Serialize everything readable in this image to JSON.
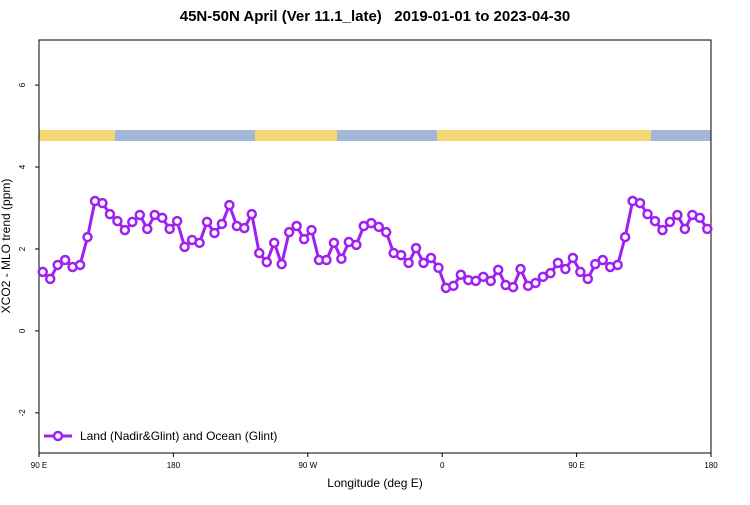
{
  "chart_data": {
    "type": "line",
    "title": "45N-50N April (Ver 11.1_late)   2019-01-01 to 2023-04-30",
    "xlabel": "Longitude (deg E)",
    "ylabel": "XCO2 - MLO trend (ppm)",
    "xlim": [
      90,
      540
    ],
    "ylim": [
      -2.98,
      7.1
    ],
    "xticks": [
      {
        "value": 90,
        "label": "90 E"
      },
      180,
      {
        "value": 270,
        "label": "90 W"
      },
      {
        "value": 360,
        "label": "0"
      },
      {
        "value": 450,
        "label": "90 E"
      },
      {
        "value": 540,
        "label": "180"
      }
    ],
    "yticks": [
      -2,
      0,
      2,
      4,
      6
    ],
    "legend": "lower left",
    "x": [
      92.5,
      97.5,
      102.5,
      107.5,
      112.5,
      117.5,
      122.5,
      127.5,
      132.5,
      137.5,
      142.5,
      147.5,
      152.5,
      157.5,
      162.5,
      167.5,
      172.5,
      177.5,
      182.5,
      187.5,
      192.5,
      197.5,
      202.5,
      207.5,
      212.5,
      217.5,
      222.5,
      227.5,
      232.5,
      237.5,
      242.5,
      247.5,
      252.5,
      257.5,
      262.5,
      267.5,
      272.5,
      277.5,
      282.5,
      287.5,
      292.5,
      297.5,
      302.5,
      307.5,
      312.5,
      317.5,
      322.5,
      327.5,
      332.5,
      337.5,
      342.5,
      347.5,
      352.5,
      357.5,
      362.5,
      367.5,
      372.5,
      377.5,
      382.5,
      387.5,
      392.5,
      397.5,
      402.5,
      407.5,
      412.5,
      417.5,
      422.5,
      427.5,
      432.5,
      437.5,
      442.5,
      447.5,
      452.5,
      457.5,
      462.5,
      467.5,
      472.5,
      477.5,
      482.5,
      487.5,
      492.5,
      497.5,
      502.5,
      507.5,
      512.5,
      517.5,
      522.5,
      527.5,
      532.5,
      537.5
    ],
    "series": [
      {
        "name": "Land (Nadir&Glint) and Ocean (Glint)",
        "color": "#a020f0",
        "values": [
          1.44,
          1.27,
          1.61,
          1.73,
          1.56,
          1.61,
          2.29,
          3.17,
          3.12,
          2.85,
          2.68,
          2.46,
          2.66,
          2.83,
          2.49,
          2.83,
          2.76,
          2.49,
          2.68,
          2.05,
          2.22,
          2.15,
          2.66,
          2.39,
          2.61,
          3.07,
          2.56,
          2.51,
          2.85,
          1.9,
          1.68,
          2.15,
          1.63,
          2.41,
          2.56,
          2.24,
          2.46,
          1.73,
          1.73,
          2.15,
          1.76,
          2.17,
          2.1,
          2.56,
          2.63,
          2.54,
          2.41,
          1.9,
          1.85,
          1.66,
          2.02,
          1.66,
          1.78,
          1.54,
          1.05,
          1.1,
          1.37,
          1.24,
          1.22,
          1.32,
          1.22,
          1.49,
          1.12,
          1.07,
          1.51,
          1.1,
          1.17,
          1.32,
          1.41,
          1.66,
          1.51,
          1.78,
          1.44,
          1.27,
          1.63,
          1.73,
          1.56,
          1.61,
          2.29,
          3.17,
          3.12,
          2.85,
          2.68,
          2.46,
          2.66,
          2.83,
          2.49,
          2.83,
          2.76,
          2.49
        ]
      }
    ]
  }
}
